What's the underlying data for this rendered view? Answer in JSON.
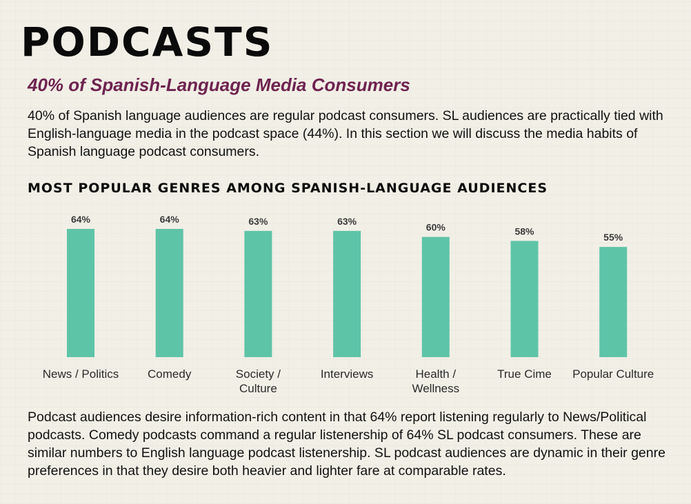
{
  "header": {
    "title": "PODCASTS",
    "subtitle": "40% of Spanish-Language Media Consumers"
  },
  "intro_text": "40% of Spanish language audiences are regular podcast consumers. SL audiences are practically tied with English-language media in the podcast space (44%). In this section we will discuss the media habits of Spanish language podcast consumers.",
  "chart_heading": "MOST POPULAR GENRES AMONG SPANISH-LANGUAGE AUDIENCES",
  "chart_data": {
    "type": "bar",
    "title": "MOST POPULAR GENRES AMONG SPANISH-LANGUAGE AUDIENCES",
    "categories": [
      "News / Politics",
      "Comedy",
      "Society / Culture",
      "Interviews",
      "Health / Wellness",
      "True Cime",
      "Popular Culture"
    ],
    "category_lines": [
      [
        "News / Politics"
      ],
      [
        "Comedy"
      ],
      [
        "Society /",
        "Culture"
      ],
      [
        "Interviews"
      ],
      [
        "Health /",
        "Wellness"
      ],
      [
        "True Cime"
      ],
      [
        "Popular Culture"
      ]
    ],
    "values": [
      64,
      64,
      63,
      63,
      60,
      58,
      55
    ],
    "value_labels": [
      "64%",
      "64%",
      "63%",
      "63%",
      "60%",
      "58%",
      "55%"
    ],
    "unit": "%",
    "ylim": [
      0,
      64
    ],
    "grid": false,
    "bar_color": "#5ec4a8"
  },
  "outro_text": "Podcast audiences desire information-rich content in that 64% report listening regularly to News/Political podcasts. Comedy podcasts command a regular listenership of 64% SL podcast consumers. These are similar numbers to English language podcast listenership. SL podcast audiences are dynamic in their genre preferences in that they desire both heavier and lighter fare at comparable rates.",
  "colors": {
    "subtitle": "#6e2350",
    "bar": "#5ec4a8",
    "background": "#f1efe6"
  }
}
